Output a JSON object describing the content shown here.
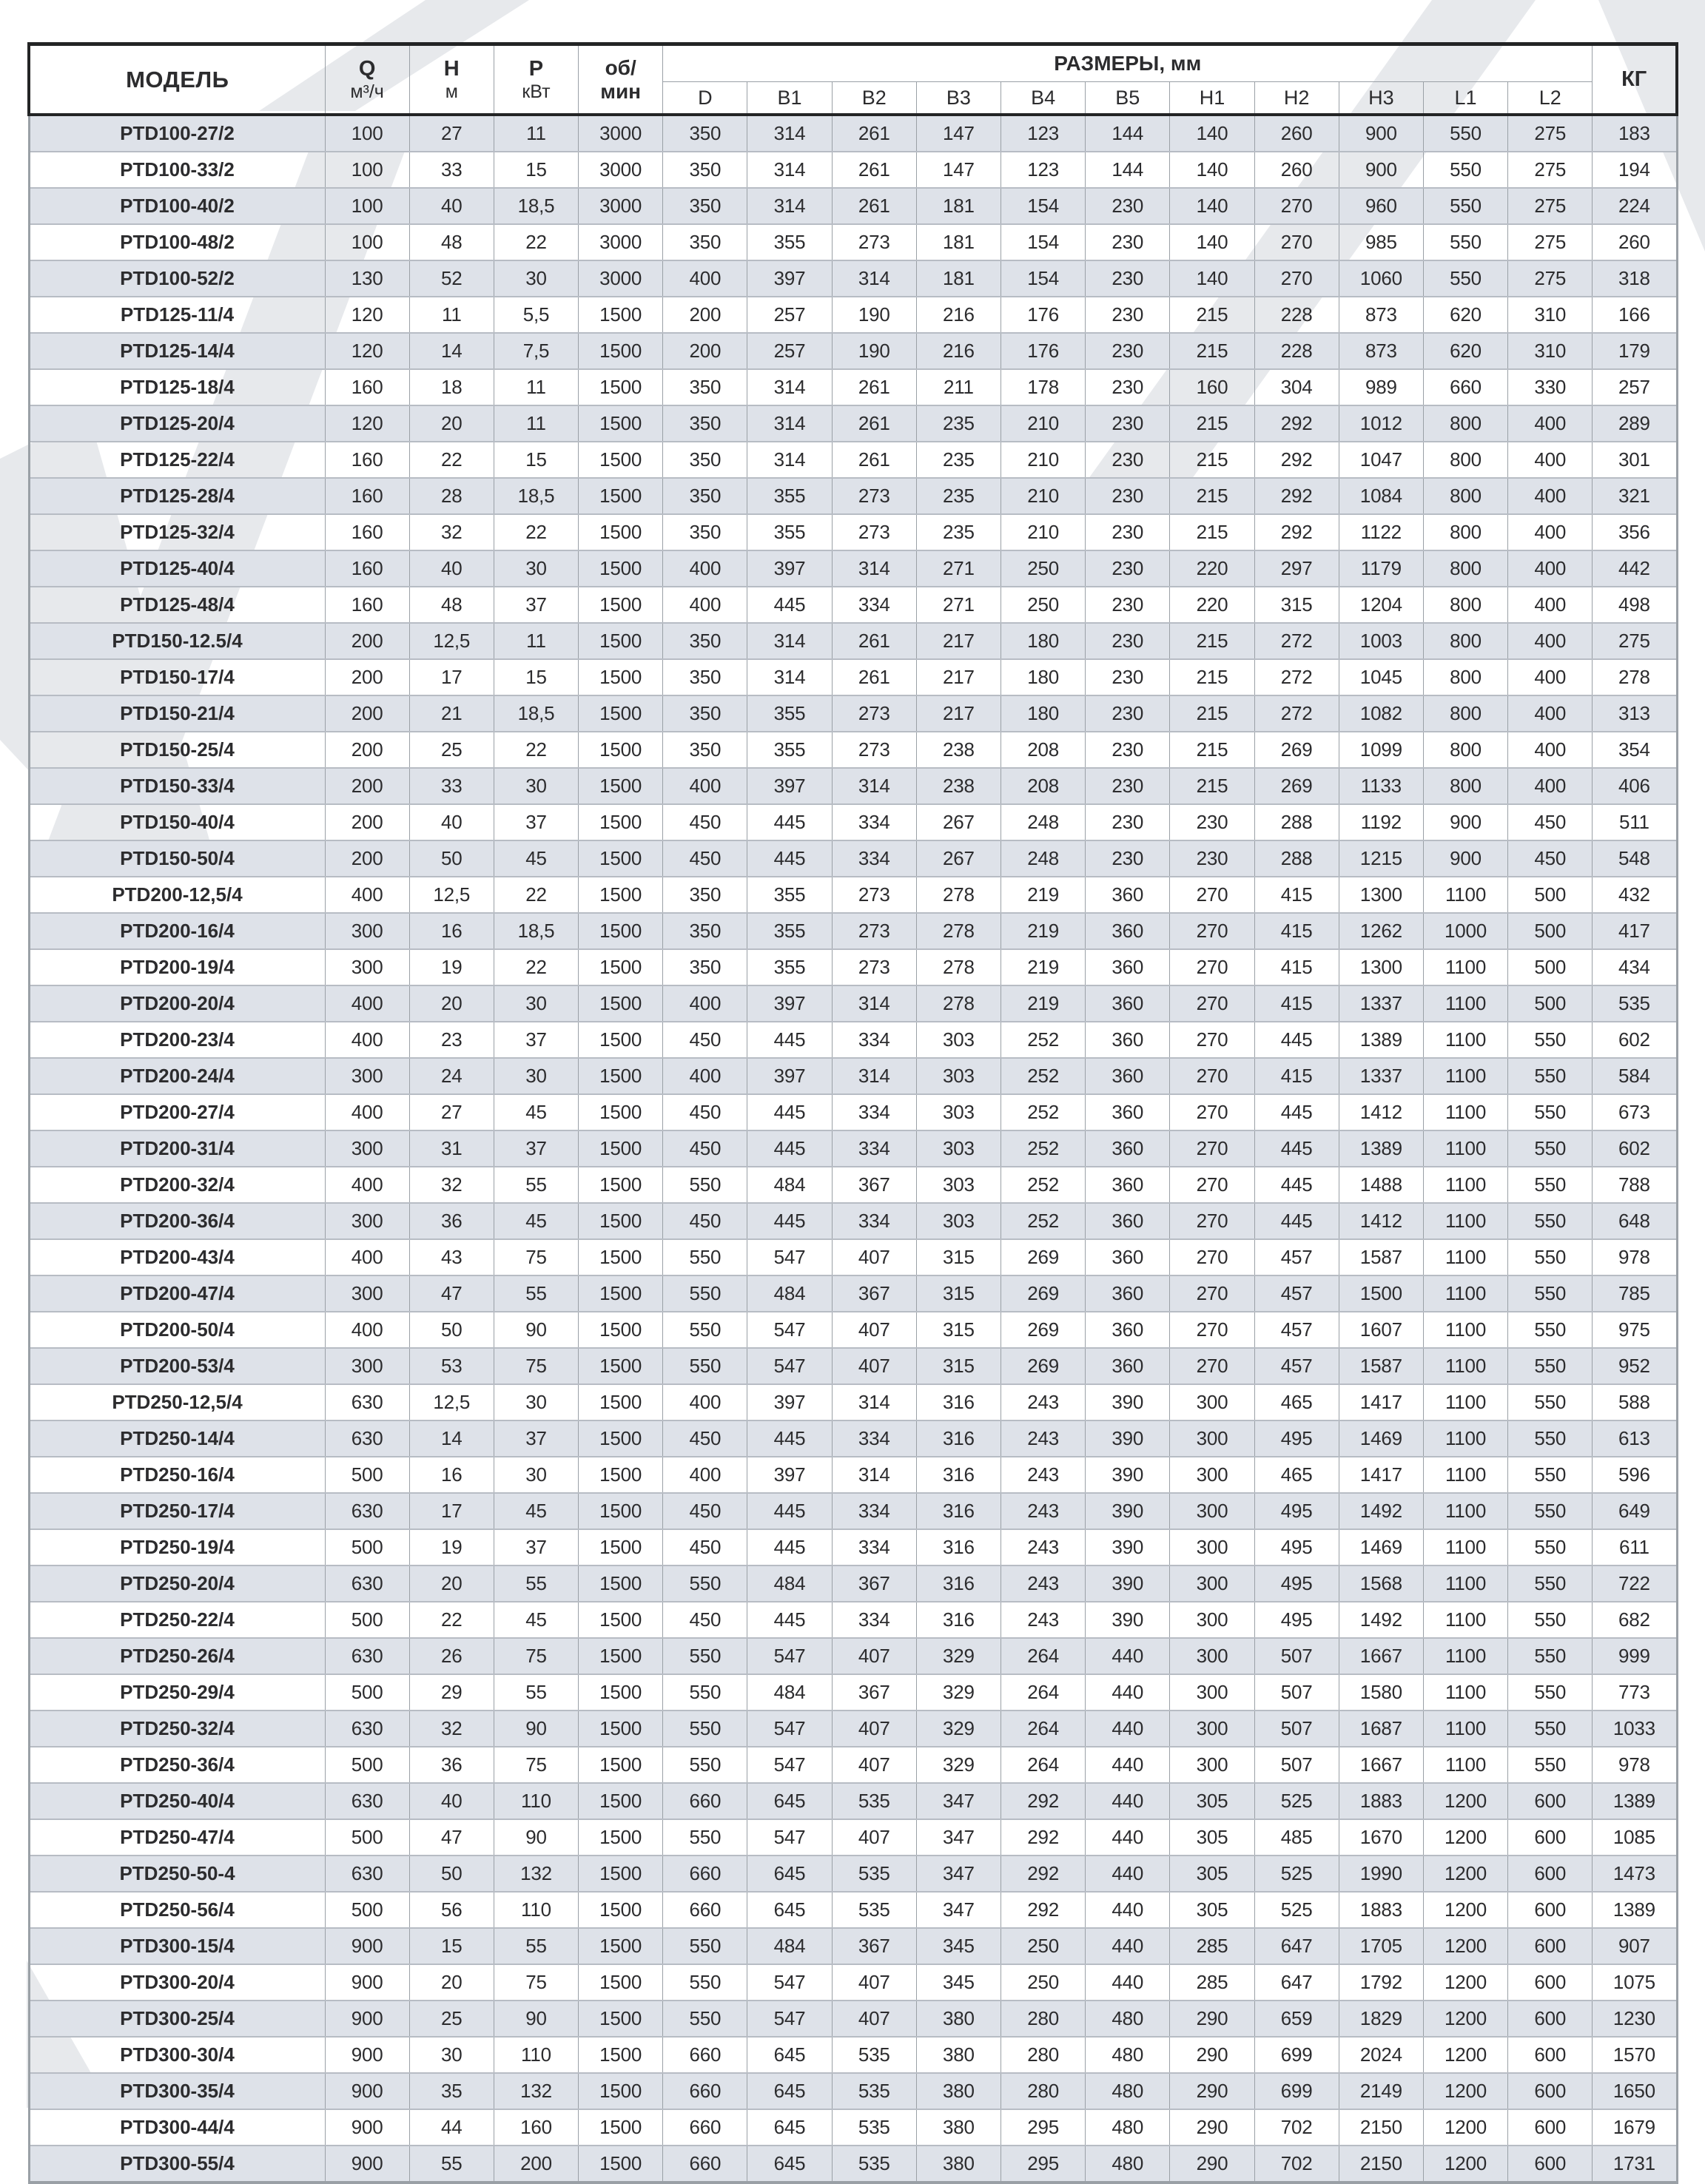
{
  "table": {
    "header": {
      "model": "МОДЕЛЬ",
      "q_label": "Q",
      "q_unit": "м³/ч",
      "h_label": "Н",
      "h_unit": "м",
      "p_label": "Р",
      "p_unit": "кВт",
      "rpm_line1": "об/",
      "rpm_line2": "мин",
      "dims_group": "РАЗМЕРЫ, мм",
      "dims": [
        "D",
        "B1",
        "B2",
        "B3",
        "B4",
        "B5",
        "H1",
        "H2",
        "H3",
        "L1",
        "L2"
      ],
      "kg": "КГ"
    },
    "rows": [
      [
        "PTD100-27/2",
        100,
        27,
        11,
        3000,
        350,
        314,
        261,
        147,
        123,
        144,
        140,
        260,
        900,
        550,
        275,
        183
      ],
      [
        "PTD100-33/2",
        100,
        33,
        15,
        3000,
        350,
        314,
        261,
        147,
        123,
        144,
        140,
        260,
        900,
        550,
        275,
        194
      ],
      [
        "PTD100-40/2",
        100,
        40,
        "18,5",
        3000,
        350,
        314,
        261,
        181,
        154,
        230,
        140,
        270,
        960,
        550,
        275,
        224
      ],
      [
        "PTD100-48/2",
        100,
        48,
        22,
        3000,
        350,
        355,
        273,
        181,
        154,
        230,
        140,
        270,
        985,
        550,
        275,
        260
      ],
      [
        "PTD100-52/2",
        130,
        52,
        30,
        3000,
        400,
        397,
        314,
        181,
        154,
        230,
        140,
        270,
        1060,
        550,
        275,
        318
      ],
      [
        "PTD125-11/4",
        120,
        11,
        "5,5",
        1500,
        200,
        257,
        190,
        216,
        176,
        230,
        215,
        228,
        873,
        620,
        310,
        166
      ],
      [
        "PTD125-14/4",
        120,
        14,
        "7,5",
        1500,
        200,
        257,
        190,
        216,
        176,
        230,
        215,
        228,
        873,
        620,
        310,
        179
      ],
      [
        "PTD125-18/4",
        160,
        18,
        11,
        1500,
        350,
        314,
        261,
        211,
        178,
        230,
        160,
        304,
        989,
        660,
        330,
        257
      ],
      [
        "PTD125-20/4",
        120,
        20,
        11,
        1500,
        350,
        314,
        261,
        235,
        210,
        230,
        215,
        292,
        1012,
        800,
        400,
        289
      ],
      [
        "PTD125-22/4",
        160,
        22,
        15,
        1500,
        350,
        314,
        261,
        235,
        210,
        230,
        215,
        292,
        1047,
        800,
        400,
        301
      ],
      [
        "PTD125-28/4",
        160,
        28,
        "18,5",
        1500,
        350,
        355,
        273,
        235,
        210,
        230,
        215,
        292,
        1084,
        800,
        400,
        321
      ],
      [
        "PTD125-32/4",
        160,
        32,
        22,
        1500,
        350,
        355,
        273,
        235,
        210,
        230,
        215,
        292,
        1122,
        800,
        400,
        356
      ],
      [
        "PTD125-40/4",
        160,
        40,
        30,
        1500,
        400,
        397,
        314,
        271,
        250,
        230,
        220,
        297,
        1179,
        800,
        400,
        442
      ],
      [
        "PTD125-48/4",
        160,
        48,
        37,
        1500,
        400,
        445,
        334,
        271,
        250,
        230,
        220,
        315,
        1204,
        800,
        400,
        498
      ],
      [
        "PTD150-12.5/4",
        200,
        "12,5",
        11,
        1500,
        350,
        314,
        261,
        217,
        180,
        230,
        215,
        272,
        1003,
        800,
        400,
        275
      ],
      [
        "PTD150-17/4",
        200,
        17,
        15,
        1500,
        350,
        314,
        261,
        217,
        180,
        230,
        215,
        272,
        1045,
        800,
        400,
        278
      ],
      [
        "PTD150-21/4",
        200,
        21,
        "18,5",
        1500,
        350,
        355,
        273,
        217,
        180,
        230,
        215,
        272,
        1082,
        800,
        400,
        313
      ],
      [
        "PTD150-25/4",
        200,
        25,
        22,
        1500,
        350,
        355,
        273,
        238,
        208,
        230,
        215,
        269,
        1099,
        800,
        400,
        354
      ],
      [
        "PTD150-33/4",
        200,
        33,
        30,
        1500,
        400,
        397,
        314,
        238,
        208,
        230,
        215,
        269,
        1133,
        800,
        400,
        406
      ],
      [
        "PTD150-40/4",
        200,
        40,
        37,
        1500,
        450,
        445,
        334,
        267,
        248,
        230,
        230,
        288,
        1192,
        900,
        450,
        511
      ],
      [
        "PTD150-50/4",
        200,
        50,
        45,
        1500,
        450,
        445,
        334,
        267,
        248,
        230,
        230,
        288,
        1215,
        900,
        450,
        548
      ],
      [
        "PTD200-12,5/4",
        400,
        "12,5",
        22,
        1500,
        350,
        355,
        273,
        278,
        219,
        360,
        270,
        415,
        1300,
        1100,
        500,
        432
      ],
      [
        "PTD200-16/4",
        300,
        16,
        "18,5",
        1500,
        350,
        355,
        273,
        278,
        219,
        360,
        270,
        415,
        1262,
        1000,
        500,
        417
      ],
      [
        "PTD200-19/4",
        300,
        19,
        22,
        1500,
        350,
        355,
        273,
        278,
        219,
        360,
        270,
        415,
        1300,
        1100,
        500,
        434
      ],
      [
        "PTD200-20/4",
        400,
        20,
        30,
        1500,
        400,
        397,
        314,
        278,
        219,
        360,
        270,
        415,
        1337,
        1100,
        500,
        535
      ],
      [
        "PTD200-23/4",
        400,
        23,
        37,
        1500,
        450,
        445,
        334,
        303,
        252,
        360,
        270,
        445,
        1389,
        1100,
        550,
        602
      ],
      [
        "PTD200-24/4",
        300,
        24,
        30,
        1500,
        400,
        397,
        314,
        303,
        252,
        360,
        270,
        415,
        1337,
        1100,
        550,
        584
      ],
      [
        "PTD200-27/4",
        400,
        27,
        45,
        1500,
        450,
        445,
        334,
        303,
        252,
        360,
        270,
        445,
        1412,
        1100,
        550,
        673
      ],
      [
        "PTD200-31/4",
        300,
        31,
        37,
        1500,
        450,
        445,
        334,
        303,
        252,
        360,
        270,
        445,
        1389,
        1100,
        550,
        602
      ],
      [
        "PTD200-32/4",
        400,
        32,
        55,
        1500,
        550,
        484,
        367,
        303,
        252,
        360,
        270,
        445,
        1488,
        1100,
        550,
        788
      ],
      [
        "PTD200-36/4",
        300,
        36,
        45,
        1500,
        450,
        445,
        334,
        303,
        252,
        360,
        270,
        445,
        1412,
        1100,
        550,
        648
      ],
      [
        "PTD200-43/4",
        400,
        43,
        75,
        1500,
        550,
        547,
        407,
        315,
        269,
        360,
        270,
        457,
        1587,
        1100,
        550,
        978
      ],
      [
        "PTD200-47/4",
        300,
        47,
        55,
        1500,
        550,
        484,
        367,
        315,
        269,
        360,
        270,
        457,
        1500,
        1100,
        550,
        785
      ],
      [
        "PTD200-50/4",
        400,
        50,
        90,
        1500,
        550,
        547,
        407,
        315,
        269,
        360,
        270,
        457,
        1607,
        1100,
        550,
        975
      ],
      [
        "PTD200-53/4",
        300,
        53,
        75,
        1500,
        550,
        547,
        407,
        315,
        269,
        360,
        270,
        457,
        1587,
        1100,
        550,
        952
      ],
      [
        "PTD250-12,5/4",
        630,
        "12,5",
        30,
        1500,
        400,
        397,
        314,
        316,
        243,
        390,
        300,
        465,
        1417,
        1100,
        550,
        588
      ],
      [
        "PTD250-14/4",
        630,
        14,
        37,
        1500,
        450,
        445,
        334,
        316,
        243,
        390,
        300,
        495,
        1469,
        1100,
        550,
        613
      ],
      [
        "PTD250-16/4",
        500,
        16,
        30,
        1500,
        400,
        397,
        314,
        316,
        243,
        390,
        300,
        465,
        1417,
        1100,
        550,
        596
      ],
      [
        "PTD250-17/4",
        630,
        17,
        45,
        1500,
        450,
        445,
        334,
        316,
        243,
        390,
        300,
        495,
        1492,
        1100,
        550,
        649
      ],
      [
        "PTD250-19/4",
        500,
        19,
        37,
        1500,
        450,
        445,
        334,
        316,
        243,
        390,
        300,
        495,
        1469,
        1100,
        550,
        611
      ],
      [
        "PTD250-20/4",
        630,
        20,
        55,
        1500,
        550,
        484,
        367,
        316,
        243,
        390,
        300,
        495,
        1568,
        1100,
        550,
        722
      ],
      [
        "PTD250-22/4",
        500,
        22,
        45,
        1500,
        450,
        445,
        334,
        316,
        243,
        390,
        300,
        495,
        1492,
        1100,
        550,
        682
      ],
      [
        "PTD250-26/4",
        630,
        26,
        75,
        1500,
        550,
        547,
        407,
        329,
        264,
        440,
        300,
        507,
        1667,
        1100,
        550,
        999
      ],
      [
        "PTD250-29/4",
        500,
        29,
        55,
        1500,
        550,
        484,
        367,
        329,
        264,
        440,
        300,
        507,
        1580,
        1100,
        550,
        773
      ],
      [
        "PTD250-32/4",
        630,
        32,
        90,
        1500,
        550,
        547,
        407,
        329,
        264,
        440,
        300,
        507,
        1687,
        1100,
        550,
        1033
      ],
      [
        "PTD250-36/4",
        500,
        36,
        75,
        1500,
        550,
        547,
        407,
        329,
        264,
        440,
        300,
        507,
        1667,
        1100,
        550,
        978
      ],
      [
        "PTD250-40/4",
        630,
        40,
        110,
        1500,
        660,
        645,
        535,
        347,
        292,
        440,
        305,
        525,
        1883,
        1200,
        600,
        1389
      ],
      [
        "PTD250-47/4",
        500,
        47,
        90,
        1500,
        550,
        547,
        407,
        347,
        292,
        440,
        305,
        485,
        1670,
        1200,
        600,
        1085
      ],
      [
        "PTD250-50-4",
        630,
        50,
        132,
        1500,
        660,
        645,
        535,
        347,
        292,
        440,
        305,
        525,
        1990,
        1200,
        600,
        1473
      ],
      [
        "PTD250-56/4",
        500,
        56,
        110,
        1500,
        660,
        645,
        535,
        347,
        292,
        440,
        305,
        525,
        1883,
        1200,
        600,
        1389
      ],
      [
        "PTD300-15/4",
        900,
        15,
        55,
        1500,
        550,
        484,
        367,
        345,
        250,
        440,
        285,
        647,
        1705,
        1200,
        600,
        907
      ],
      [
        "PTD300-20/4",
        900,
        20,
        75,
        1500,
        550,
        547,
        407,
        345,
        250,
        440,
        285,
        647,
        1792,
        1200,
        600,
        1075
      ],
      [
        "PTD300-25/4",
        900,
        25,
        90,
        1500,
        550,
        547,
        407,
        380,
        280,
        480,
        290,
        659,
        1829,
        1200,
        600,
        1230
      ],
      [
        "PTD300-30/4",
        900,
        30,
        110,
        1500,
        660,
        645,
        535,
        380,
        280,
        480,
        290,
        699,
        2024,
        1200,
        600,
        1570
      ],
      [
        "PTD300-35/4",
        900,
        35,
        132,
        1500,
        660,
        645,
        535,
        380,
        280,
        480,
        290,
        699,
        2149,
        1200,
        600,
        1650
      ],
      [
        "PTD300-44/4",
        900,
        44,
        160,
        1500,
        660,
        645,
        535,
        380,
        295,
        480,
        290,
        702,
        2150,
        1200,
        600,
        1679
      ],
      [
        "PTD300-55/4",
        900,
        55,
        200,
        1500,
        660,
        645,
        535,
        380,
        295,
        480,
        290,
        702,
        2150,
        1200,
        600,
        1731
      ]
    ]
  },
  "colors": {
    "row_stripe": "#dee2e9",
    "header_border": "#232425",
    "grid_line": "#9aa0a6",
    "row_line": "#b7bcc4",
    "text": "#2c2c2e",
    "watermark": "#e7e9ec"
  }
}
